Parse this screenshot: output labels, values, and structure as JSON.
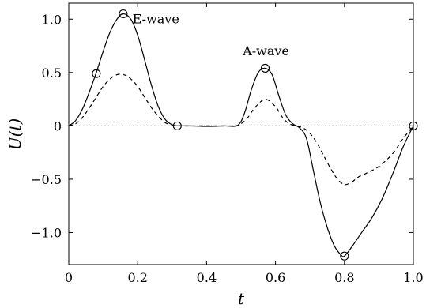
{
  "chart_data": {
    "type": "line",
    "xlabel": "t",
    "ylabel": "U(t)",
    "xlim": [
      0,
      1
    ],
    "ylim": [
      -1.3,
      1.15
    ],
    "xticks": [
      0,
      0.2,
      0.4,
      0.6,
      0.8,
      1.0
    ],
    "xtick_labels": [
      "0",
      "0.2",
      "0.4",
      "0.6",
      "0.8",
      "1.0"
    ],
    "yticks": [
      -1.0,
      -0.5,
      0,
      0.5,
      1.0
    ],
    "ytick_labels": [
      "−1.0",
      "−0.5",
      "0",
      "0.5",
      "1.0"
    ],
    "grid": false,
    "legend": "none",
    "annotations": [
      {
        "text": "E-wave",
        "x": 0.185,
        "y": 0.96
      },
      {
        "text": "A-wave",
        "x": 0.505,
        "y": 0.66
      }
    ],
    "series": [
      {
        "style": "solid",
        "x": [
          0,
          0.02,
          0.04,
          0.06,
          0.08,
          0.1,
          0.12,
          0.14,
          0.158,
          0.18,
          0.2,
          0.22,
          0.24,
          0.26,
          0.28,
          0.3,
          0.315,
          0.35,
          0.4,
          0.45,
          0.49,
          0.51,
          0.53,
          0.55,
          0.57,
          0.59,
          0.61,
          0.63,
          0.65,
          0.67,
          0.69,
          0.71,
          0.73,
          0.75,
          0.77,
          0.79,
          0.8,
          0.82,
          0.85,
          0.88,
          0.91,
          0.94,
          0.97,
          1.0
        ],
        "y": [
          0,
          0.05,
          0.16,
          0.32,
          0.5,
          0.7,
          0.88,
          1.0,
          1.05,
          1.0,
          0.85,
          0.62,
          0.38,
          0.18,
          0.06,
          0.01,
          0,
          0,
          -0.005,
          0,
          0.005,
          0.12,
          0.34,
          0.5,
          0.54,
          0.48,
          0.28,
          0.1,
          0.02,
          -0.02,
          -0.12,
          -0.42,
          -0.72,
          -0.95,
          -1.12,
          -1.21,
          -1.22,
          -1.14,
          -1.0,
          -0.86,
          -0.68,
          -0.45,
          -0.2,
          0
        ]
      },
      {
        "style": "dashed",
        "x": [
          0,
          0.02,
          0.04,
          0.06,
          0.08,
          0.1,
          0.12,
          0.14,
          0.16,
          0.18,
          0.2,
          0.22,
          0.24,
          0.26,
          0.28,
          0.3,
          0.32,
          0.4,
          0.48,
          0.5,
          0.52,
          0.54,
          0.57,
          0.6,
          0.62,
          0.64,
          0.66,
          0.68,
          0.7,
          0.72,
          0.74,
          0.76,
          0.78,
          0.8,
          0.82,
          0.84,
          0.86,
          0.9,
          0.94,
          0.97,
          1.0
        ],
        "y": [
          0,
          0.02,
          0.08,
          0.17,
          0.27,
          0.37,
          0.44,
          0.48,
          0.48,
          0.44,
          0.37,
          0.27,
          0.17,
          0.09,
          0.03,
          0.01,
          0,
          0,
          0,
          0.02,
          0.08,
          0.17,
          0.25,
          0.18,
          0.08,
          0.02,
          0,
          -0.02,
          -0.07,
          -0.16,
          -0.28,
          -0.4,
          -0.5,
          -0.55,
          -0.53,
          -0.48,
          -0.45,
          -0.38,
          -0.26,
          -0.12,
          0
        ]
      },
      {
        "style": "dotted",
        "x": [
          0,
          1
        ],
        "y": [
          0,
          0
        ]
      }
    ],
    "markers": [
      {
        "x": 0.08,
        "y": 0.49
      },
      {
        "x": 0.158,
        "y": 1.05
      },
      {
        "x": 0.315,
        "y": 0.0
      },
      {
        "x": 0.57,
        "y": 0.54
      },
      {
        "x": 0.8,
        "y": -1.22
      },
      {
        "x": 1.0,
        "y": 0.0
      }
    ]
  }
}
